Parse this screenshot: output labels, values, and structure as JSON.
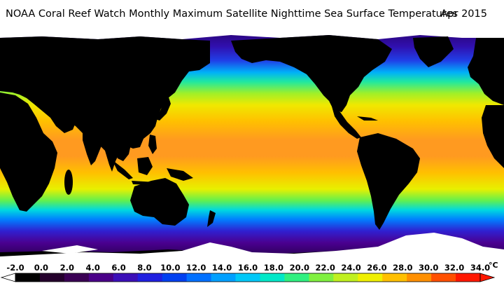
{
  "title": "NOAA Coral Reef Watch Monthly Maximum Satellite Nighttime Sea Surface Temperatures",
  "date": "Apr 2015",
  "legend": {
    "ticks": [
      "-2.0",
      "0.0",
      "2.0",
      "4.0",
      "6.0",
      "8.0",
      "10.0",
      "12.0",
      "14.0",
      "16.0",
      "18.0",
      "20.0",
      "22.0",
      "24.0",
      "26.0",
      "28.0",
      "30.0",
      "32.0",
      "34.0"
    ],
    "unit": "°C",
    "min": -2.0,
    "max": 34.0,
    "colors": [
      "#000000",
      "#24002c",
      "#3a0054",
      "#4a0088",
      "#3c10b8",
      "#2020e0",
      "#0040f0",
      "#0070ff",
      "#00a0ff",
      "#00c8f8",
      "#00e8c8",
      "#30f080",
      "#80f040",
      "#c0f020",
      "#f0f000",
      "#ffc000",
      "#ff9000",
      "#ff5000",
      "#ff1800"
    ],
    "land_color": "#000000",
    "ice_color": "#ffffff"
  }
}
